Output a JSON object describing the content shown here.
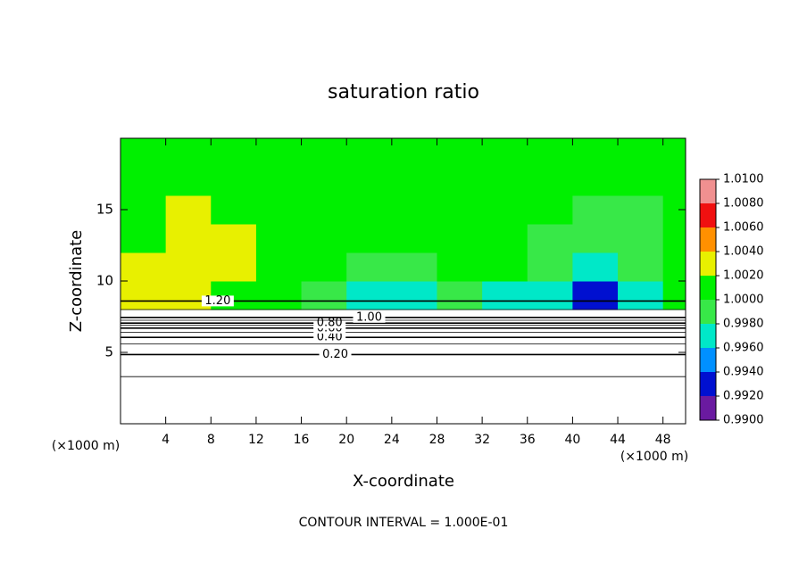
{
  "chart_data": {
    "type": "contour",
    "title": "saturation ratio",
    "x_label": "X-coordinate",
    "y_label": "Z-coordinate",
    "x_unit": "(×1000 m)",
    "y_unit": "(×1000 m)",
    "footer": "CONTOUR INTERVAL = 1.000E-01",
    "xlim": [
      0,
      50
    ],
    "ylim": [
      0,
      20
    ],
    "xticks": [
      4,
      8,
      12,
      16,
      20,
      24,
      28,
      32,
      36,
      40,
      44,
      48
    ],
    "yticks": [
      5,
      10,
      15
    ],
    "x_edges": [
      0,
      4,
      8,
      12,
      16,
      20,
      24,
      28,
      32,
      36,
      40,
      44,
      48,
      50
    ],
    "z_edges": [
      8,
      10,
      12,
      14,
      16,
      18,
      20
    ],
    "field": [
      [
        1.0025,
        1.0028,
        1.0015,
        1.0005,
        0.9985,
        0.9975,
        0.9965,
        0.9985,
        0.9975,
        0.9965,
        0.9935,
        0.9965,
        1.0005
      ],
      [
        1.0025,
        1.003,
        1.002,
        1.0008,
        1.0002,
        0.9995,
        0.9985,
        1.0003,
        1.0002,
        0.9985,
        0.9975,
        0.9982,
        1.0003
      ],
      [
        1.0018,
        1.0028,
        1.002,
        1.0008,
        1.0003,
        1.0002,
        1.0002,
        1.0003,
        1.0002,
        0.999,
        0.998,
        0.9985,
        1.0005
      ],
      [
        1.001,
        1.0022,
        1.0015,
        1.0005,
        1.0003,
        1.0002,
        1.0002,
        1.0003,
        1.0003,
        1.0,
        0.999,
        0.999,
        1.0002
      ],
      [
        1.0005,
        1.0015,
        1.001,
        1.0005,
        1.0003,
        1.0003,
        1.0003,
        1.0003,
        1.0003,
        1.0002,
        1.0,
        1.0,
        1.0002
      ],
      [
        1.0003,
        1.0008,
        1.0005,
        1.0003,
        1.0003,
        1.0003,
        1.0003,
        1.0003,
        1.0003,
        1.0003,
        1.0002,
        1.0002,
        1.0003
      ]
    ],
    "levels": [
      {
        "value": 0.99,
        "label": "0.9900"
      },
      {
        "value": 0.992,
        "label": "0.9920"
      },
      {
        "value": 0.994,
        "label": "0.9940"
      },
      {
        "value": 0.996,
        "label": "0.9960"
      },
      {
        "value": 0.998,
        "label": "0.9980"
      },
      {
        "value": 1.0,
        "label": "1.0000"
      },
      {
        "value": 1.002,
        "label": "1.0020"
      },
      {
        "value": 1.004,
        "label": "1.0040"
      },
      {
        "value": 1.006,
        "label": "1.0060"
      },
      {
        "value": 1.008,
        "label": "1.0080"
      },
      {
        "value": 1.01,
        "label": "1.0100"
      }
    ],
    "colors": [
      "#6a1aa0",
      "#0010d0",
      "#0090ff",
      "#00e8c8",
      "#38e848",
      "#00f000",
      "#e8f000",
      "#ff9000",
      "#f01010",
      "#f09090"
    ],
    "contours": [
      {
        "level": 0.1,
        "z": 3.3
      },
      {
        "level": 0.2,
        "z": 4.85,
        "label": "0.20"
      },
      {
        "level": 0.3,
        "z": 5.6
      },
      {
        "level": 0.4,
        "z": 6.05,
        "label": "0.40"
      },
      {
        "level": 0.5,
        "z": 6.4
      },
      {
        "level": 0.6,
        "z": 6.7,
        "label": "0.60"
      },
      {
        "level": 0.7,
        "z": 6.9
      },
      {
        "level": 0.8,
        "z": 7.05,
        "label": "0.80"
      },
      {
        "level": 0.9,
        "z": 7.25
      },
      {
        "level": 1.0,
        "z": 7.45,
        "label": "1.00"
      },
      {
        "level": 1.1,
        "z": 8.0
      },
      {
        "level": 1.2,
        "z": 8.6,
        "label": "1.20"
      }
    ]
  }
}
